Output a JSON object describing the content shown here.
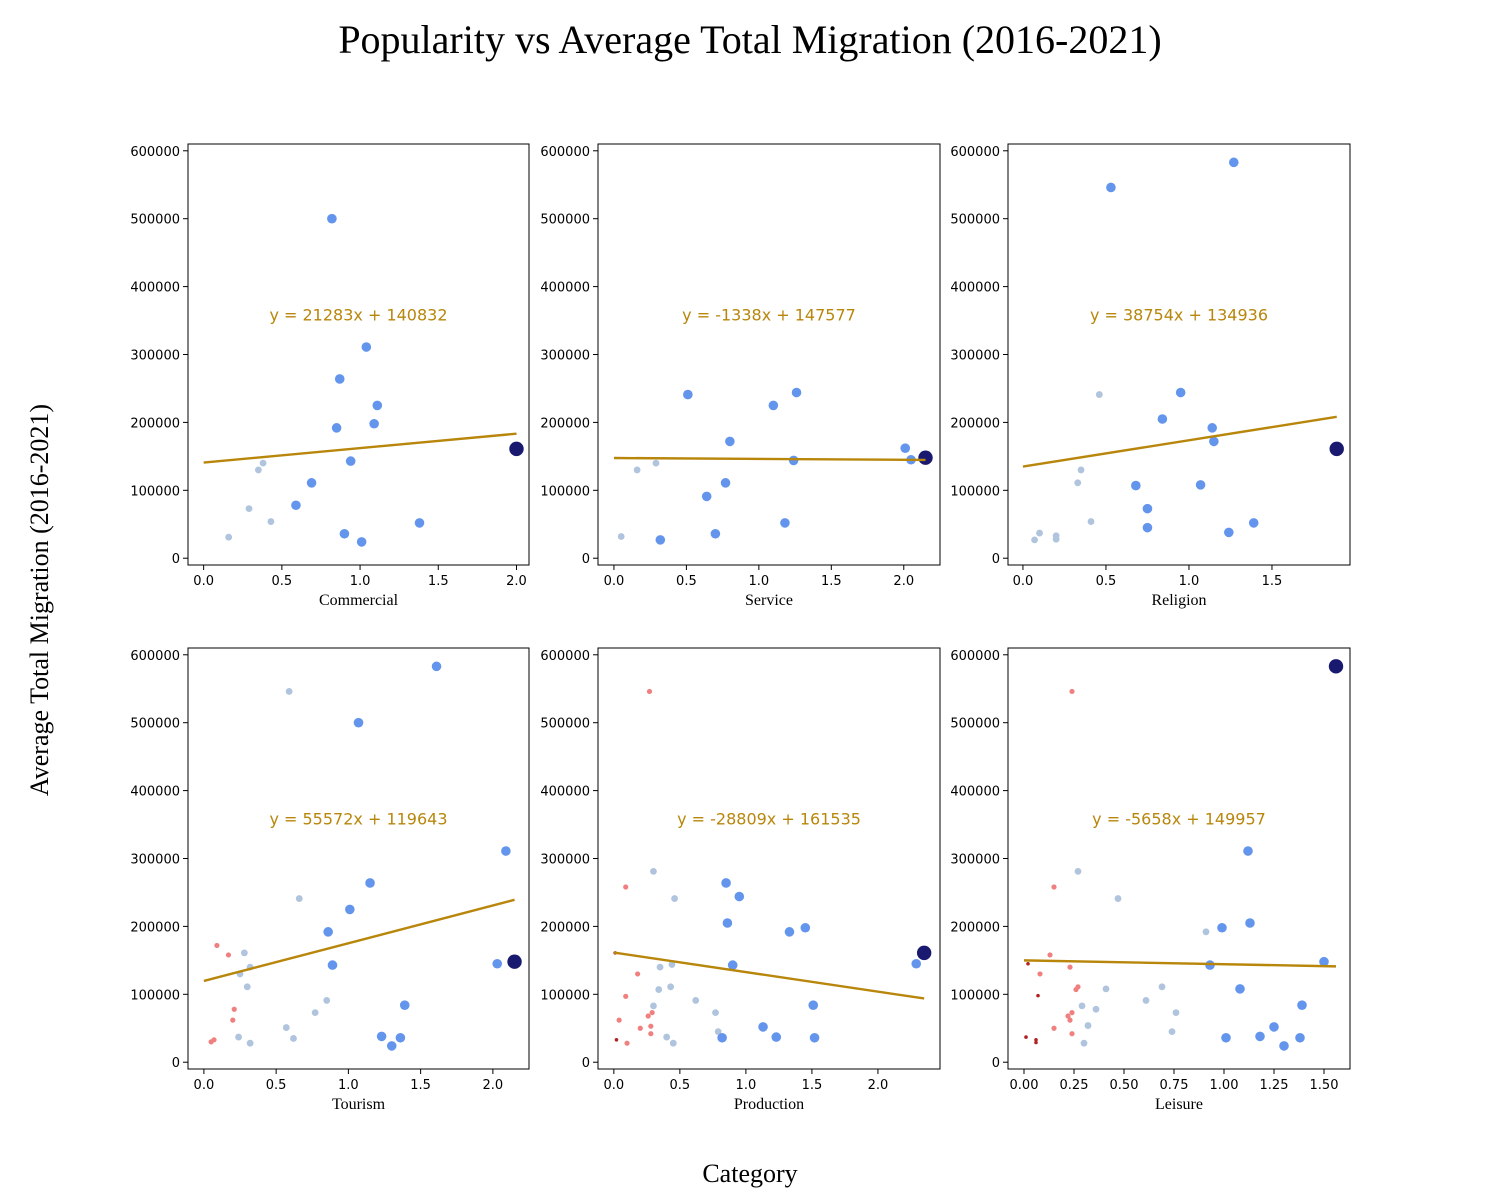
{
  "figure": {
    "title": "Popularity vs Average Total Migration (2016-2021)",
    "ylabel": "Average Total Migration (2016-2021)",
    "xlabel": "Category"
  },
  "colors": {
    "low": "#b0c4de",
    "mid": "#6495ed",
    "high": "#191970",
    "vlow": "#f08080",
    "vvlow": "#b22222",
    "fit": "#b8860b"
  },
  "chart_data": [
    {
      "type": "scatter",
      "xlabel": "Commercial",
      "xlim": [
        -0.1,
        2.08
      ],
      "ylim": [
        -10000,
        610000
      ],
      "xticks": [
        0.0,
        0.5,
        1.0,
        1.5,
        2.0
      ],
      "xtick_labels": [
        "0.0",
        "0.5",
        "1.0",
        "1.5",
        "2.0"
      ],
      "yticks": [
        0,
        100000,
        200000,
        300000,
        400000,
        500000,
        600000
      ],
      "ytick_labels": [
        "0",
        "100000",
        "200000",
        "300000",
        "400000",
        "500000",
        "600000"
      ],
      "fit": {
        "slope": 21283,
        "intercept": 140832,
        "x_range": [
          0.0,
          2.0
        ]
      },
      "equation": "y = 21283x + 140832",
      "points": [
        {
          "x": 0.16,
          "y": 31000,
          "c": "low"
        },
        {
          "x": 0.29,
          "y": 73000,
          "c": "low"
        },
        {
          "x": 0.35,
          "y": 130000,
          "c": "low"
        },
        {
          "x": 0.38,
          "y": 140000,
          "c": "low"
        },
        {
          "x": 0.43,
          "y": 54000,
          "c": "low"
        },
        {
          "x": 0.59,
          "y": 78000,
          "c": "mid"
        },
        {
          "x": 0.69,
          "y": 111000,
          "c": "mid"
        },
        {
          "x": 0.82,
          "y": 500000,
          "c": "mid"
        },
        {
          "x": 0.85,
          "y": 192000,
          "c": "mid"
        },
        {
          "x": 0.87,
          "y": 264000,
          "c": "mid"
        },
        {
          "x": 0.9,
          "y": 36000,
          "c": "mid"
        },
        {
          "x": 0.94,
          "y": 143000,
          "c": "mid"
        },
        {
          "x": 1.01,
          "y": 24000,
          "c": "mid"
        },
        {
          "x": 1.04,
          "y": 311000,
          "c": "mid"
        },
        {
          "x": 1.09,
          "y": 198000,
          "c": "mid"
        },
        {
          "x": 1.11,
          "y": 225000,
          "c": "mid"
        },
        {
          "x": 1.38,
          "y": 52000,
          "c": "mid"
        },
        {
          "x": 2.0,
          "y": 161000,
          "c": "high"
        }
      ]
    },
    {
      "type": "scatter",
      "xlabel": "Service",
      "xlim": [
        -0.11,
        2.25
      ],
      "ylim": [
        -10000,
        610000
      ],
      "xticks": [
        0.0,
        0.5,
        1.0,
        1.5,
        2.0
      ],
      "xtick_labels": [
        "0.0",
        "0.5",
        "1.0",
        "1.5",
        "2.0"
      ],
      "yticks": [
        0,
        100000,
        200000,
        300000,
        400000,
        500000,
        600000
      ],
      "ytick_labels": [
        "0",
        "100000",
        "200000",
        "300000",
        "400000",
        "500000",
        "600000"
      ],
      "fit": {
        "slope": -1338,
        "intercept": 147577,
        "x_range": [
          0.0,
          2.15
        ]
      },
      "equation": "y = -1338x + 147577",
      "points": [
        {
          "x": 0.05,
          "y": 32000,
          "c": "low"
        },
        {
          "x": 0.16,
          "y": 130000,
          "c": "low"
        },
        {
          "x": 0.29,
          "y": 140000,
          "c": "low"
        },
        {
          "x": 0.32,
          "y": 27000,
          "c": "mid"
        },
        {
          "x": 0.51,
          "y": 241000,
          "c": "mid"
        },
        {
          "x": 0.64,
          "y": 91000,
          "c": "mid"
        },
        {
          "x": 0.7,
          "y": 36000,
          "c": "mid"
        },
        {
          "x": 0.77,
          "y": 111000,
          "c": "mid"
        },
        {
          "x": 0.8,
          "y": 172000,
          "c": "mid"
        },
        {
          "x": 1.1,
          "y": 225000,
          "c": "mid"
        },
        {
          "x": 1.18,
          "y": 52000,
          "c": "mid"
        },
        {
          "x": 1.24,
          "y": 144000,
          "c": "mid"
        },
        {
          "x": 1.26,
          "y": 244000,
          "c": "mid"
        },
        {
          "x": 2.01,
          "y": 162000,
          "c": "mid"
        },
        {
          "x": 2.05,
          "y": 145000,
          "c": "mid"
        },
        {
          "x": 2.15,
          "y": 148000,
          "c": "high"
        }
      ]
    },
    {
      "type": "scatter",
      "xlabel": "Religion",
      "xlim": [
        -0.09,
        1.97
      ],
      "ylim": [
        -10000,
        610000
      ],
      "xticks": [
        0.0,
        0.5,
        1.0,
        1.5
      ],
      "xtick_labels": [
        "0.0",
        "0.5",
        "1.0",
        "1.5"
      ],
      "yticks": [
        0,
        100000,
        200000,
        300000,
        400000,
        500000,
        600000
      ],
      "ytick_labels": [
        "0",
        "100000",
        "200000",
        "300000",
        "400000",
        "500000",
        "600000"
      ],
      "fit": {
        "slope": 38754,
        "intercept": 134936,
        "x_range": [
          0.0,
          1.89
        ]
      },
      "equation": "y = 38754x + 134936",
      "points": [
        {
          "x": 0.07,
          "y": 27000,
          "c": "low"
        },
        {
          "x": 0.1,
          "y": 37000,
          "c": "low"
        },
        {
          "x": 0.2,
          "y": 33000,
          "c": "low"
        },
        {
          "x": 0.2,
          "y": 28000,
          "c": "low"
        },
        {
          "x": 0.33,
          "y": 111000,
          "c": "low"
        },
        {
          "x": 0.35,
          "y": 130000,
          "c": "low"
        },
        {
          "x": 0.41,
          "y": 54000,
          "c": "low"
        },
        {
          "x": 0.46,
          "y": 241000,
          "c": "low"
        },
        {
          "x": 0.53,
          "y": 546000,
          "c": "mid"
        },
        {
          "x": 0.68,
          "y": 107000,
          "c": "mid"
        },
        {
          "x": 0.75,
          "y": 73000,
          "c": "mid"
        },
        {
          "x": 0.75,
          "y": 45000,
          "c": "mid"
        },
        {
          "x": 0.84,
          "y": 205000,
          "c": "mid"
        },
        {
          "x": 0.95,
          "y": 244000,
          "c": "mid"
        },
        {
          "x": 1.07,
          "y": 108000,
          "c": "mid"
        },
        {
          "x": 1.14,
          "y": 192000,
          "c": "mid"
        },
        {
          "x": 1.15,
          "y": 172000,
          "c": "mid"
        },
        {
          "x": 1.24,
          "y": 38000,
          "c": "mid"
        },
        {
          "x": 1.27,
          "y": 583000,
          "c": "mid"
        },
        {
          "x": 1.39,
          "y": 52000,
          "c": "mid"
        },
        {
          "x": 1.89,
          "y": 161000,
          "c": "high"
        }
      ]
    },
    {
      "type": "scatter",
      "xlabel": "Tourism",
      "xlim": [
        -0.11,
        2.25
      ],
      "ylim": [
        -10000,
        610000
      ],
      "xticks": [
        0.0,
        0.5,
        1.0,
        1.5,
        2.0
      ],
      "xtick_labels": [
        "0.0",
        "0.5",
        "1.0",
        "1.5",
        "2.0"
      ],
      "yticks": [
        0,
        100000,
        200000,
        300000,
        400000,
        500000,
        600000
      ],
      "ytick_labels": [
        "0",
        "100000",
        "200000",
        "300000",
        "400000",
        "500000",
        "600000"
      ],
      "fit": {
        "slope": 55572,
        "intercept": 119643,
        "x_range": [
          0.0,
          2.15
        ]
      },
      "equation": "y = 55572x + 119643",
      "points": [
        {
          "x": 0.05,
          "y": 30000,
          "c": "vlow"
        },
        {
          "x": 0.07,
          "y": 33000,
          "c": "vlow"
        },
        {
          "x": 0.09,
          "y": 172000,
          "c": "vlow"
        },
        {
          "x": 0.17,
          "y": 158000,
          "c": "vlow"
        },
        {
          "x": 0.2,
          "y": 62000,
          "c": "vlow"
        },
        {
          "x": 0.21,
          "y": 78000,
          "c": "vlow"
        },
        {
          "x": 0.24,
          "y": 37000,
          "c": "low"
        },
        {
          "x": 0.25,
          "y": 130000,
          "c": "low"
        },
        {
          "x": 0.28,
          "y": 161000,
          "c": "low"
        },
        {
          "x": 0.3,
          "y": 111000,
          "c": "low"
        },
        {
          "x": 0.32,
          "y": 140000,
          "c": "low"
        },
        {
          "x": 0.32,
          "y": 28000,
          "c": "low"
        },
        {
          "x": 0.57,
          "y": 51000,
          "c": "low"
        },
        {
          "x": 0.59,
          "y": 546000,
          "c": "low"
        },
        {
          "x": 0.62,
          "y": 35000,
          "c": "low"
        },
        {
          "x": 0.66,
          "y": 241000,
          "c": "low"
        },
        {
          "x": 0.77,
          "y": 73000,
          "c": "low"
        },
        {
          "x": 0.85,
          "y": 91000,
          "c": "low"
        },
        {
          "x": 0.86,
          "y": 192000,
          "c": "mid"
        },
        {
          "x": 0.89,
          "y": 143000,
          "c": "mid"
        },
        {
          "x": 1.01,
          "y": 225000,
          "c": "mid"
        },
        {
          "x": 1.07,
          "y": 500000,
          "c": "mid"
        },
        {
          "x": 1.15,
          "y": 264000,
          "c": "mid"
        },
        {
          "x": 1.23,
          "y": 38000,
          "c": "mid"
        },
        {
          "x": 1.3,
          "y": 24000,
          "c": "mid"
        },
        {
          "x": 1.36,
          "y": 36000,
          "c": "mid"
        },
        {
          "x": 1.39,
          "y": 84000,
          "c": "mid"
        },
        {
          "x": 1.61,
          "y": 583000,
          "c": "mid"
        },
        {
          "x": 2.03,
          "y": 145000,
          "c": "mid"
        },
        {
          "x": 2.09,
          "y": 311000,
          "c": "mid"
        },
        {
          "x": 2.15,
          "y": 148000,
          "c": "high"
        }
      ]
    },
    {
      "type": "scatter",
      "xlabel": "Production",
      "xlim": [
        -0.12,
        2.47
      ],
      "ylim": [
        -10000,
        610000
      ],
      "xticks": [
        0.0,
        0.5,
        1.0,
        1.5,
        2.0
      ],
      "xtick_labels": [
        "0.0",
        "0.5",
        "1.0",
        "1.5",
        "2.0"
      ],
      "yticks": [
        0,
        100000,
        200000,
        300000,
        400000,
        500000,
        600000
      ],
      "ytick_labels": [
        "0",
        "100000",
        "200000",
        "300000",
        "400000",
        "500000",
        "600000"
      ],
      "fit": {
        "slope": -28809,
        "intercept": 161535,
        "x_range": [
          0.0,
          2.35
        ]
      },
      "equation": "y = -28809x + 161535",
      "points": [
        {
          "x": 0.01,
          "y": 161000,
          "c": "vvlow"
        },
        {
          "x": 0.02,
          "y": 33000,
          "c": "vvlow"
        },
        {
          "x": 0.04,
          "y": 62000,
          "c": "vlow"
        },
        {
          "x": 0.09,
          "y": 258000,
          "c": "vlow"
        },
        {
          "x": 0.09,
          "y": 97000,
          "c": "vlow"
        },
        {
          "x": 0.1,
          "y": 28000,
          "c": "vlow"
        },
        {
          "x": 0.18,
          "y": 130000,
          "c": "vlow"
        },
        {
          "x": 0.2,
          "y": 50000,
          "c": "vlow"
        },
        {
          "x": 0.26,
          "y": 68000,
          "c": "vlow"
        },
        {
          "x": 0.27,
          "y": 546000,
          "c": "vlow"
        },
        {
          "x": 0.28,
          "y": 53000,
          "c": "vlow"
        },
        {
          "x": 0.28,
          "y": 42000,
          "c": "vlow"
        },
        {
          "x": 0.29,
          "y": 73000,
          "c": "vlow"
        },
        {
          "x": 0.3,
          "y": 281000,
          "c": "low"
        },
        {
          "x": 0.3,
          "y": 83000,
          "c": "low"
        },
        {
          "x": 0.34,
          "y": 107000,
          "c": "low"
        },
        {
          "x": 0.35,
          "y": 140000,
          "c": "low"
        },
        {
          "x": 0.4,
          "y": 37000,
          "c": "low"
        },
        {
          "x": 0.43,
          "y": 111000,
          "c": "low"
        },
        {
          "x": 0.44,
          "y": 144000,
          "c": "low"
        },
        {
          "x": 0.45,
          "y": 28000,
          "c": "low"
        },
        {
          "x": 0.46,
          "y": 241000,
          "c": "low"
        },
        {
          "x": 0.62,
          "y": 91000,
          "c": "low"
        },
        {
          "x": 0.77,
          "y": 73000,
          "c": "low"
        },
        {
          "x": 0.79,
          "y": 45000,
          "c": "low"
        },
        {
          "x": 0.82,
          "y": 36000,
          "c": "mid"
        },
        {
          "x": 0.85,
          "y": 264000,
          "c": "mid"
        },
        {
          "x": 0.86,
          "y": 205000,
          "c": "mid"
        },
        {
          "x": 0.9,
          "y": 143000,
          "c": "mid"
        },
        {
          "x": 0.95,
          "y": 244000,
          "c": "mid"
        },
        {
          "x": 1.13,
          "y": 52000,
          "c": "mid"
        },
        {
          "x": 1.23,
          "y": 37000,
          "c": "mid"
        },
        {
          "x": 1.33,
          "y": 192000,
          "c": "mid"
        },
        {
          "x": 1.45,
          "y": 198000,
          "c": "mid"
        },
        {
          "x": 1.51,
          "y": 84000,
          "c": "mid"
        },
        {
          "x": 1.52,
          "y": 36000,
          "c": "mid"
        },
        {
          "x": 2.29,
          "y": 145000,
          "c": "mid"
        },
        {
          "x": 2.35,
          "y": 161000,
          "c": "high"
        }
      ]
    },
    {
      "type": "scatter",
      "xlabel": "Leisure",
      "xlim": [
        -0.08,
        1.63
      ],
      "ylim": [
        -10000,
        610000
      ],
      "xticks": [
        0.0,
        0.25,
        0.5,
        0.75,
        1.0,
        1.25,
        1.5
      ],
      "xtick_labels": [
        "0.00",
        "0.25",
        "0.50",
        "0.75",
        "1.00",
        "1.25",
        "1.50"
      ],
      "yticks": [
        0,
        100000,
        200000,
        300000,
        400000,
        500000,
        600000
      ],
      "ytick_labels": [
        "0",
        "100000",
        "200000",
        "300000",
        "400000",
        "500000",
        "600000"
      ],
      "fit": {
        "slope": -5658,
        "intercept": 149957,
        "x_range": [
          0.0,
          1.56
        ]
      },
      "equation": "y = -5658x + 149957",
      "points": [
        {
          "x": 0.01,
          "y": 37000,
          "c": "vvlow"
        },
        {
          "x": 0.02,
          "y": 145000,
          "c": "vvlow"
        },
        {
          "x": 0.06,
          "y": 33000,
          "c": "vvlow"
        },
        {
          "x": 0.06,
          "y": 29000,
          "c": "vvlow"
        },
        {
          "x": 0.07,
          "y": 98000,
          "c": "vvlow"
        },
        {
          "x": 0.08,
          "y": 130000,
          "c": "vlow"
        },
        {
          "x": 0.13,
          "y": 158000,
          "c": "vlow"
        },
        {
          "x": 0.15,
          "y": 258000,
          "c": "vlow"
        },
        {
          "x": 0.15,
          "y": 50000,
          "c": "vlow"
        },
        {
          "x": 0.22,
          "y": 68000,
          "c": "vlow"
        },
        {
          "x": 0.23,
          "y": 140000,
          "c": "vlow"
        },
        {
          "x": 0.23,
          "y": 62000,
          "c": "vlow"
        },
        {
          "x": 0.24,
          "y": 546000,
          "c": "vlow"
        },
        {
          "x": 0.24,
          "y": 42000,
          "c": "vlow"
        },
        {
          "x": 0.24,
          "y": 73000,
          "c": "vlow"
        },
        {
          "x": 0.26,
          "y": 107000,
          "c": "vlow"
        },
        {
          "x": 0.27,
          "y": 111000,
          "c": "vlow"
        },
        {
          "x": 0.27,
          "y": 281000,
          "c": "low"
        },
        {
          "x": 0.29,
          "y": 83000,
          "c": "low"
        },
        {
          "x": 0.3,
          "y": 28000,
          "c": "low"
        },
        {
          "x": 0.32,
          "y": 54000,
          "c": "low"
        },
        {
          "x": 0.36,
          "y": 78000,
          "c": "low"
        },
        {
          "x": 0.41,
          "y": 108000,
          "c": "low"
        },
        {
          "x": 0.47,
          "y": 241000,
          "c": "low"
        },
        {
          "x": 0.61,
          "y": 91000,
          "c": "low"
        },
        {
          "x": 0.69,
          "y": 111000,
          "c": "low"
        },
        {
          "x": 0.74,
          "y": 45000,
          "c": "low"
        },
        {
          "x": 0.76,
          "y": 73000,
          "c": "low"
        },
        {
          "x": 0.91,
          "y": 192000,
          "c": "low"
        },
        {
          "x": 0.93,
          "y": 143000,
          "c": "mid"
        },
        {
          "x": 0.99,
          "y": 198000,
          "c": "mid"
        },
        {
          "x": 1.01,
          "y": 36000,
          "c": "mid"
        },
        {
          "x": 1.08,
          "y": 108000,
          "c": "mid"
        },
        {
          "x": 1.12,
          "y": 311000,
          "c": "mid"
        },
        {
          "x": 1.13,
          "y": 205000,
          "c": "mid"
        },
        {
          "x": 1.18,
          "y": 38000,
          "c": "mid"
        },
        {
          "x": 1.25,
          "y": 52000,
          "c": "mid"
        },
        {
          "x": 1.3,
          "y": 24000,
          "c": "mid"
        },
        {
          "x": 1.38,
          "y": 36000,
          "c": "mid"
        },
        {
          "x": 1.39,
          "y": 84000,
          "c": "mid"
        },
        {
          "x": 1.5,
          "y": 148000,
          "c": "mid"
        },
        {
          "x": 1.56,
          "y": 583000,
          "c": "high"
        }
      ]
    }
  ]
}
